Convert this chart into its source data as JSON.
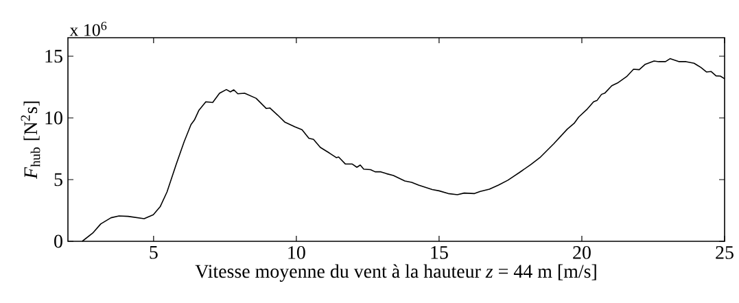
{
  "chart_data": {
    "type": "line",
    "xlabel": "Vitesse moyenne du vent à la hauteur *z* = 44 m  [m/s]",
    "ylabel": "*F*$_{hub}$  [N$^{2}$s]",
    "annotations": [
      "x 10$^{6}$"
    ],
    "xlim": [
      2,
      25
    ],
    "ylim": [
      0,
      16.5
    ],
    "xticks": [
      5,
      10,
      15,
      20,
      25
    ],
    "yticks": [
      0,
      5,
      10,
      15
    ],
    "grid": false,
    "legend": false,
    "marker": "none",
    "line_style": "solid",
    "series": [
      {
        "color": "#000000",
        "x": [
          2.5,
          2.87,
          3.15,
          3.51,
          3.79,
          4.11,
          4.67,
          4.99,
          5.23,
          5.47,
          5.79,
          6.07,
          6.31,
          6.43,
          6.59,
          6.83,
          7.07,
          7.31,
          7.55,
          7.69,
          7.81,
          7.95,
          8.19,
          8.59,
          8.95,
          9.07,
          9.35,
          9.59,
          9.95,
          10.2,
          10.44,
          10.6,
          10.84,
          11.16,
          11.4,
          11.48,
          11.72,
          11.96,
          12.12,
          12.24,
          12.36,
          12.6,
          12.76,
          12.96,
          13.16,
          13.4,
          13.8,
          14.04,
          14.28,
          14.76,
          15.0,
          15.32,
          15.64,
          15.88,
          16.24,
          16.44,
          16.76,
          17.08,
          17.41,
          17.81,
          18.21,
          18.53,
          19.01,
          19.49,
          19.73,
          19.89,
          20.17,
          20.41,
          20.53,
          20.69,
          20.81,
          21.05,
          21.25,
          21.57,
          21.81,
          22.01,
          22.21,
          22.53,
          22.69,
          22.93,
          23.09,
          23.41,
          23.65,
          23.93,
          24.17,
          24.37,
          24.53,
          24.7,
          24.85,
          25.0
        ],
        "values": [
          0,
          0.67,
          1.41,
          1.91,
          2.06,
          2.02,
          1.83,
          2.15,
          2.8,
          4.0,
          6.22,
          8.07,
          9.46,
          9.83,
          10.63,
          11.31,
          11.25,
          12.0,
          12.3,
          12.11,
          12.28,
          11.96,
          12.0,
          11.59,
          10.76,
          10.81,
          10.22,
          9.67,
          9.28,
          9.04,
          8.35,
          8.26,
          7.61,
          7.15,
          6.78,
          6.83,
          6.26,
          6.26,
          6.0,
          6.18,
          5.85,
          5.81,
          5.63,
          5.63,
          5.48,
          5.33,
          4.89,
          4.78,
          4.56,
          4.19,
          4.09,
          3.87,
          3.78,
          3.91,
          3.87,
          4.04,
          4.22,
          4.56,
          4.95,
          5.57,
          6.22,
          6.78,
          7.89,
          9.09,
          9.56,
          10.07,
          10.67,
          11.31,
          11.41,
          11.91,
          12.02,
          12.61,
          12.83,
          13.35,
          13.94,
          13.91,
          14.33,
          14.61,
          14.56,
          14.56,
          14.8,
          14.56,
          14.56,
          14.43,
          14.09,
          13.72,
          13.76,
          13.41,
          13.39,
          13.17
        ]
      }
    ]
  }
}
